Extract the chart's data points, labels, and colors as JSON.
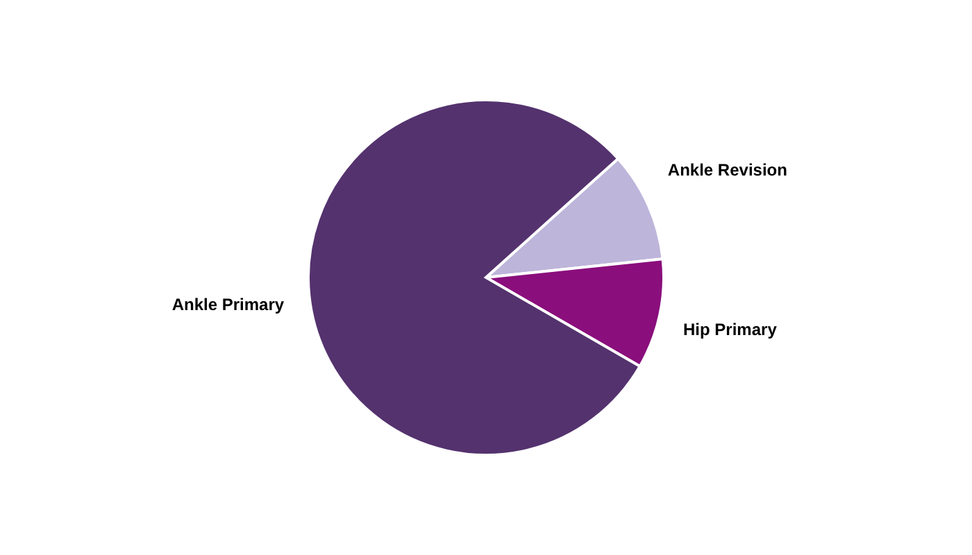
{
  "chart_data": {
    "type": "pie",
    "categories": [
      "Ankle Revision",
      "Hip Primary",
      "Ankle Primary"
    ],
    "values": [
      10,
      10,
      80
    ],
    "colors": [
      "#bdb5da",
      "#8a0e7c",
      "#54326e"
    ]
  }
}
